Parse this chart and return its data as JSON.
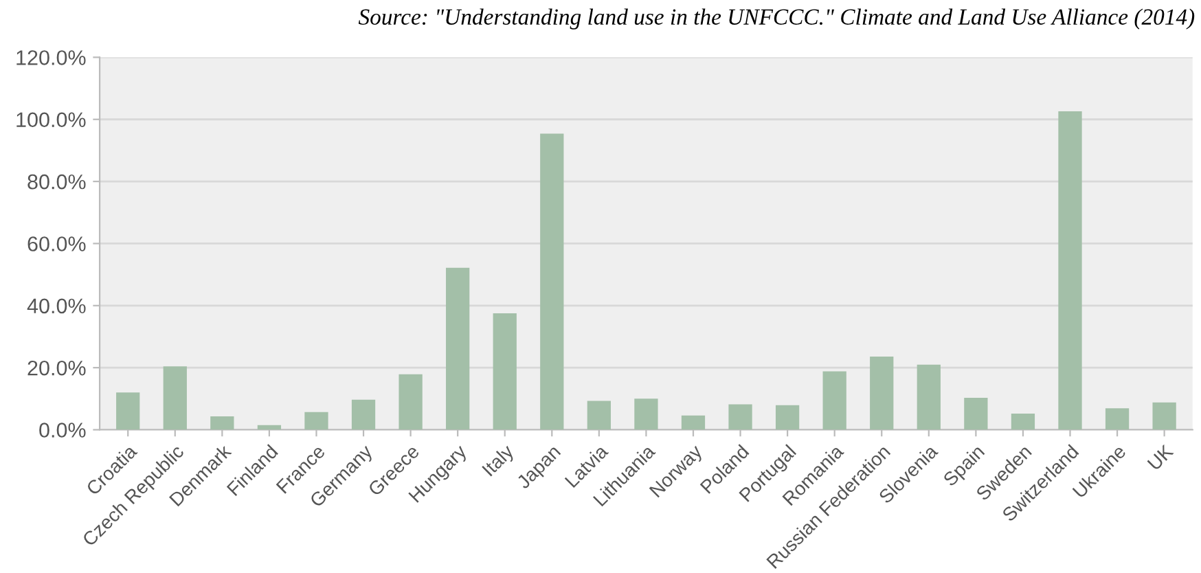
{
  "chart_data": {
    "type": "bar",
    "categories": [
      "Croatia",
      "Czech Republic",
      "Denmark",
      "Finland",
      "France",
      "Germany",
      "Greece",
      "Hungary",
      "Italy",
      "Japan",
      "Latvia",
      "Lithuania",
      "Norway",
      "Poland",
      "Portugal",
      "Romania",
      "Russian Federation",
      "Slovenia",
      "Spain",
      "Sweden",
      "Switzerland",
      "Ukraine",
      "UK"
    ],
    "values": [
      12,
      20.4,
      4.3,
      1.5,
      5.7,
      9.7,
      17.9,
      52.2,
      37.5,
      95.4,
      9.3,
      10.0,
      4.6,
      8.2,
      7.9,
      18.8,
      23.6,
      21.0,
      10.3,
      5.2,
      102.6,
      6.9,
      8.8
    ],
    "color": "#a3bfa8",
    "ylim": [
      0,
      120
    ],
    "yticks": [
      {
        "value": 0,
        "label": "0.0%"
      },
      {
        "value": 20,
        "label": "20.0%"
      },
      {
        "value": 40,
        "label": "40.0%"
      },
      {
        "value": 60,
        "label": "60.0%"
      },
      {
        "value": 80,
        "label": "80.0%"
      },
      {
        "value": 100,
        "label": "100.0%"
      },
      {
        "value": 120,
        "label": "120.0%"
      }
    ],
    "grid": "y",
    "annotations": [
      "Source: \"Understanding land use in the UNFCCC.\" Climate and Land Use Alliance (2014)"
    ]
  }
}
